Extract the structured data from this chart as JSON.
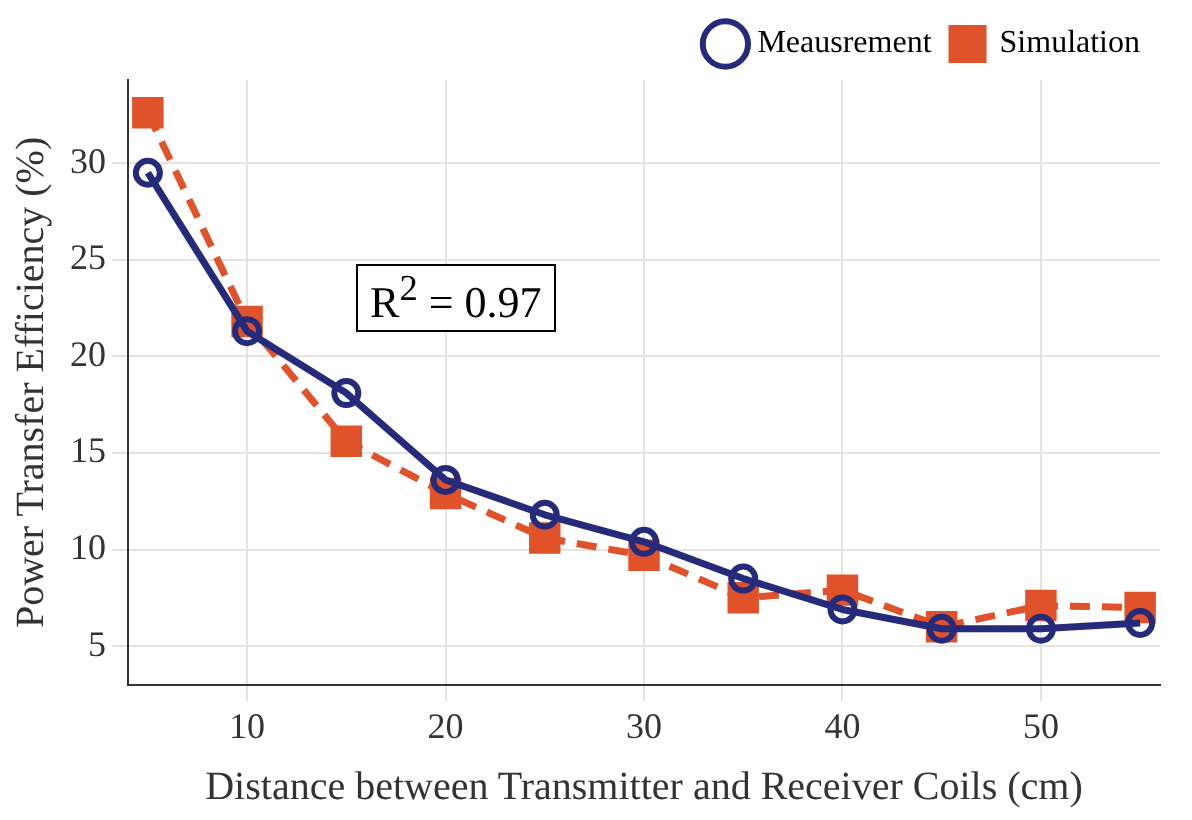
{
  "chart_data": {
    "type": "line",
    "xlabel": "Distance between Transmitter and Receiver Coils (cm)",
    "ylabel": "Power Transfer Efficiency (%)",
    "x": [
      5,
      10,
      15,
      20,
      25,
      30,
      35,
      40,
      45,
      50,
      55
    ],
    "series": [
      {
        "name": "Meausrement",
        "color": "#262a7a",
        "marker": "circle",
        "line_style": "solid",
        "values": [
          29.5,
          21.3,
          18.1,
          13.6,
          11.8,
          10.4,
          8.5,
          6.9,
          5.9,
          5.9,
          6.2
        ]
      },
      {
        "name": "Simulation",
        "color": "#e0522a",
        "marker": "square",
        "line_style": "dashed",
        "values": [
          32.6,
          21.8,
          15.6,
          12.9,
          10.6,
          9.7,
          7.5,
          7.9,
          6.0,
          7.1,
          7.0
        ]
      }
    ],
    "xlim": [
      4,
      56
    ],
    "xticks": [
      10,
      20,
      30,
      40,
      50
    ],
    "ylim": [
      3,
      34.3
    ],
    "yticks": [
      5,
      10,
      15,
      20,
      25,
      30
    ],
    "grid": true,
    "legend": "top right",
    "annotations": [
      "R$^{2}$ = 0.97"
    ]
  }
}
